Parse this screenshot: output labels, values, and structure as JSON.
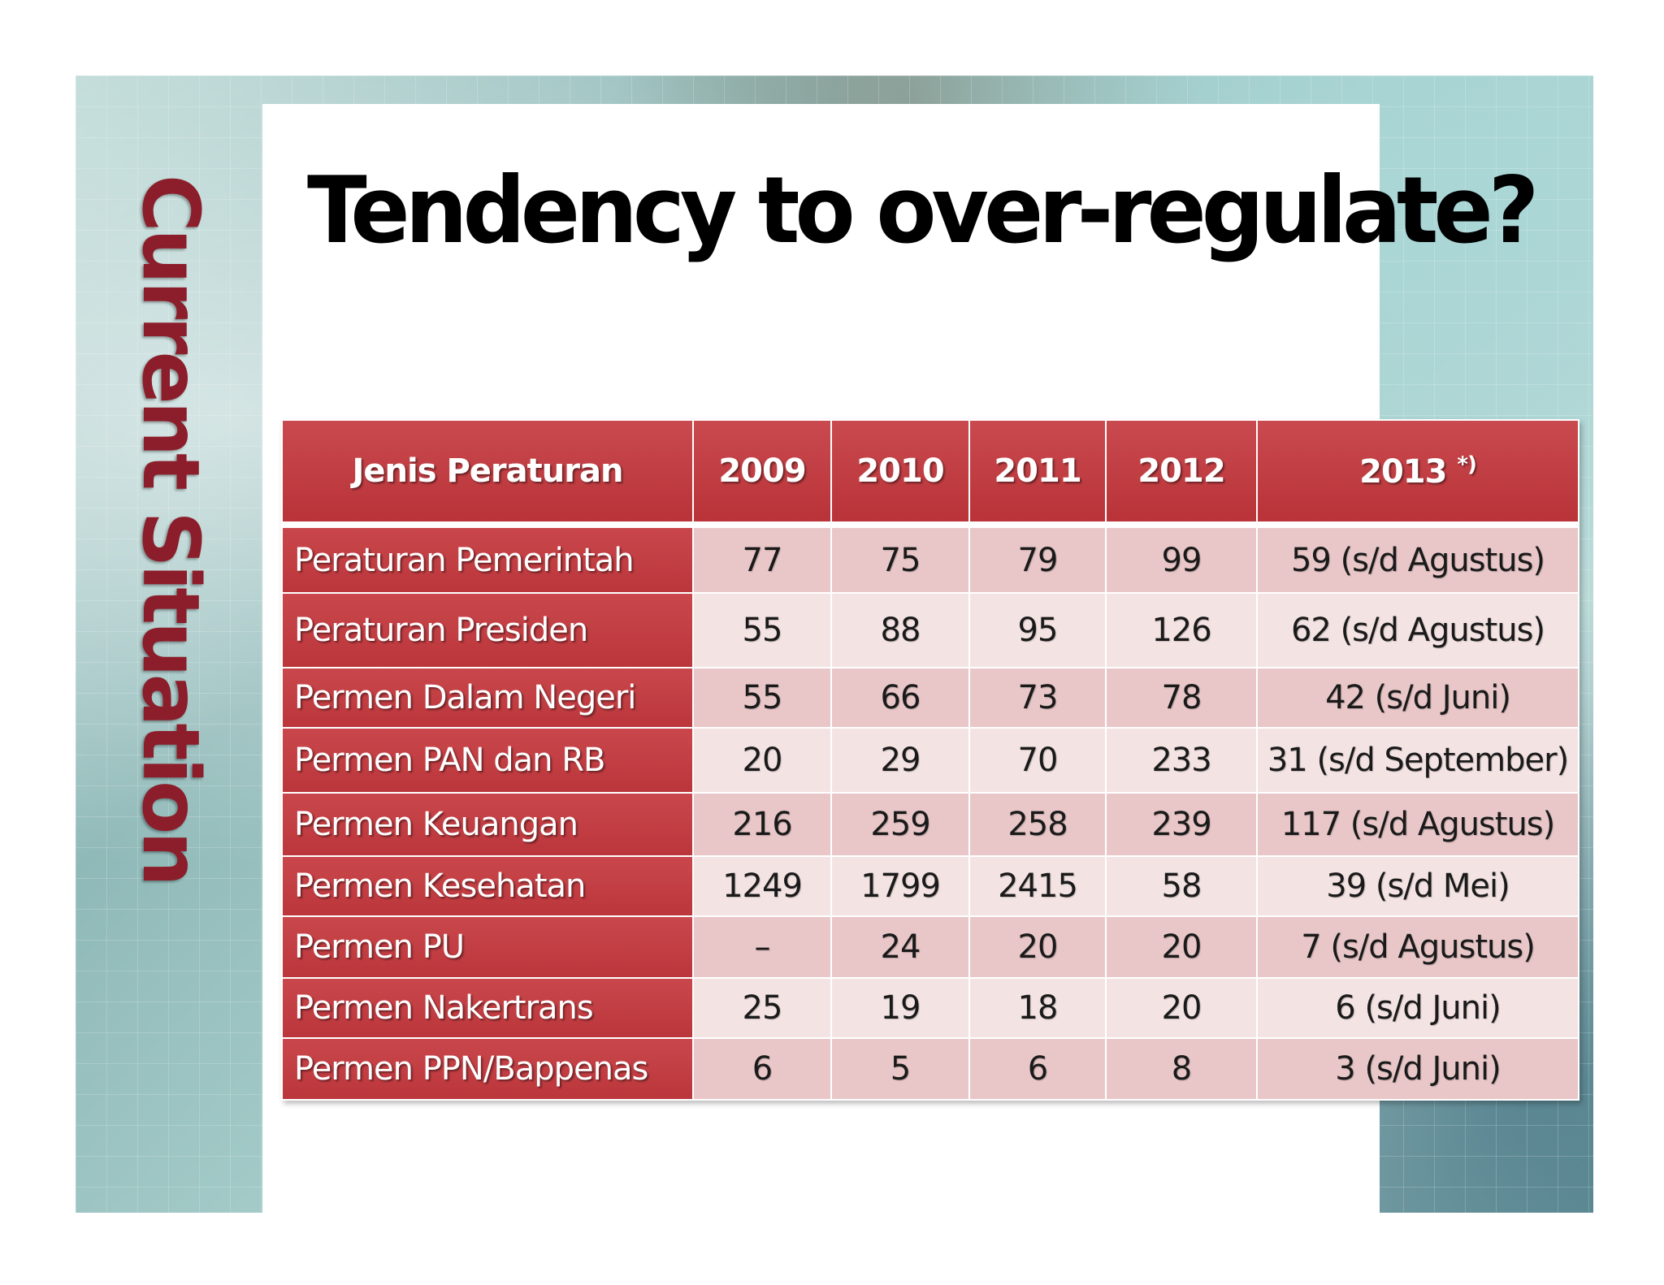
{
  "side_title": "Current Situation",
  "title": "Tendency to over-regulate?",
  "table": {
    "headers": {
      "type": "Jenis Peraturan",
      "y2009": "2009",
      "y2010": "2010",
      "y2011": "2011",
      "y2012": "2012",
      "y2013": "2013",
      "y2013_note": "*)"
    },
    "rows": [
      {
        "name": "Peraturan  Pemerintah",
        "v2009": "77",
        "v2010": "75",
        "v2011": "79",
        "v2012": "99",
        "v2013": "59 (s/d Agustus)"
      },
      {
        "name": "Peraturan  Presiden",
        "v2009": "55",
        "v2010": "88",
        "v2011": "95",
        "v2012": "126",
        "v2013": "62 (s/d Agustus)"
      },
      {
        "name": "Permen Dalam Negeri",
        "v2009": "55",
        "v2010": "66",
        "v2011": "73",
        "v2012": "78",
        "v2013": "42 (s/d Juni)"
      },
      {
        "name": "Permen PAN dan RB",
        "v2009": "20",
        "v2010": "29",
        "v2011": "70",
        "v2012": "233",
        "v2013": "31 (s/d September)"
      },
      {
        "name": "Permen Keuangan",
        "v2009": "216",
        "v2010": "259",
        "v2011": "258",
        "v2012": "239",
        "v2013": "117 (s/d Agustus)"
      },
      {
        "name": "Permen Kesehatan",
        "v2009": "1249",
        "v2010": "1799",
        "v2011": "2415",
        "v2012": "58",
        "v2013": "39 (s/d Mei)"
      },
      {
        "name": "Permen PU",
        "v2009": "–",
        "v2010": "24",
        "v2011": "20",
        "v2012": "20",
        "v2013": "7 (s/d Agustus)"
      },
      {
        "name": "Permen Nakertrans",
        "v2009": "25",
        "v2010": "19",
        "v2011": "18",
        "v2012": "20",
        "v2013": "6 (s/d Juni)"
      },
      {
        "name": "Permen PPN/Bappenas",
        "v2009": "6",
        "v2010": "5",
        "v2011": "6",
        "v2012": "8",
        "v2013": "3 (s/d Juni)"
      }
    ]
  },
  "colors": {
    "header_red": "#c0393e",
    "side_title_red": "#8c1d2a",
    "cell_pink_dark": "#e9c7c8",
    "cell_pink_light": "#f4e3e3"
  }
}
